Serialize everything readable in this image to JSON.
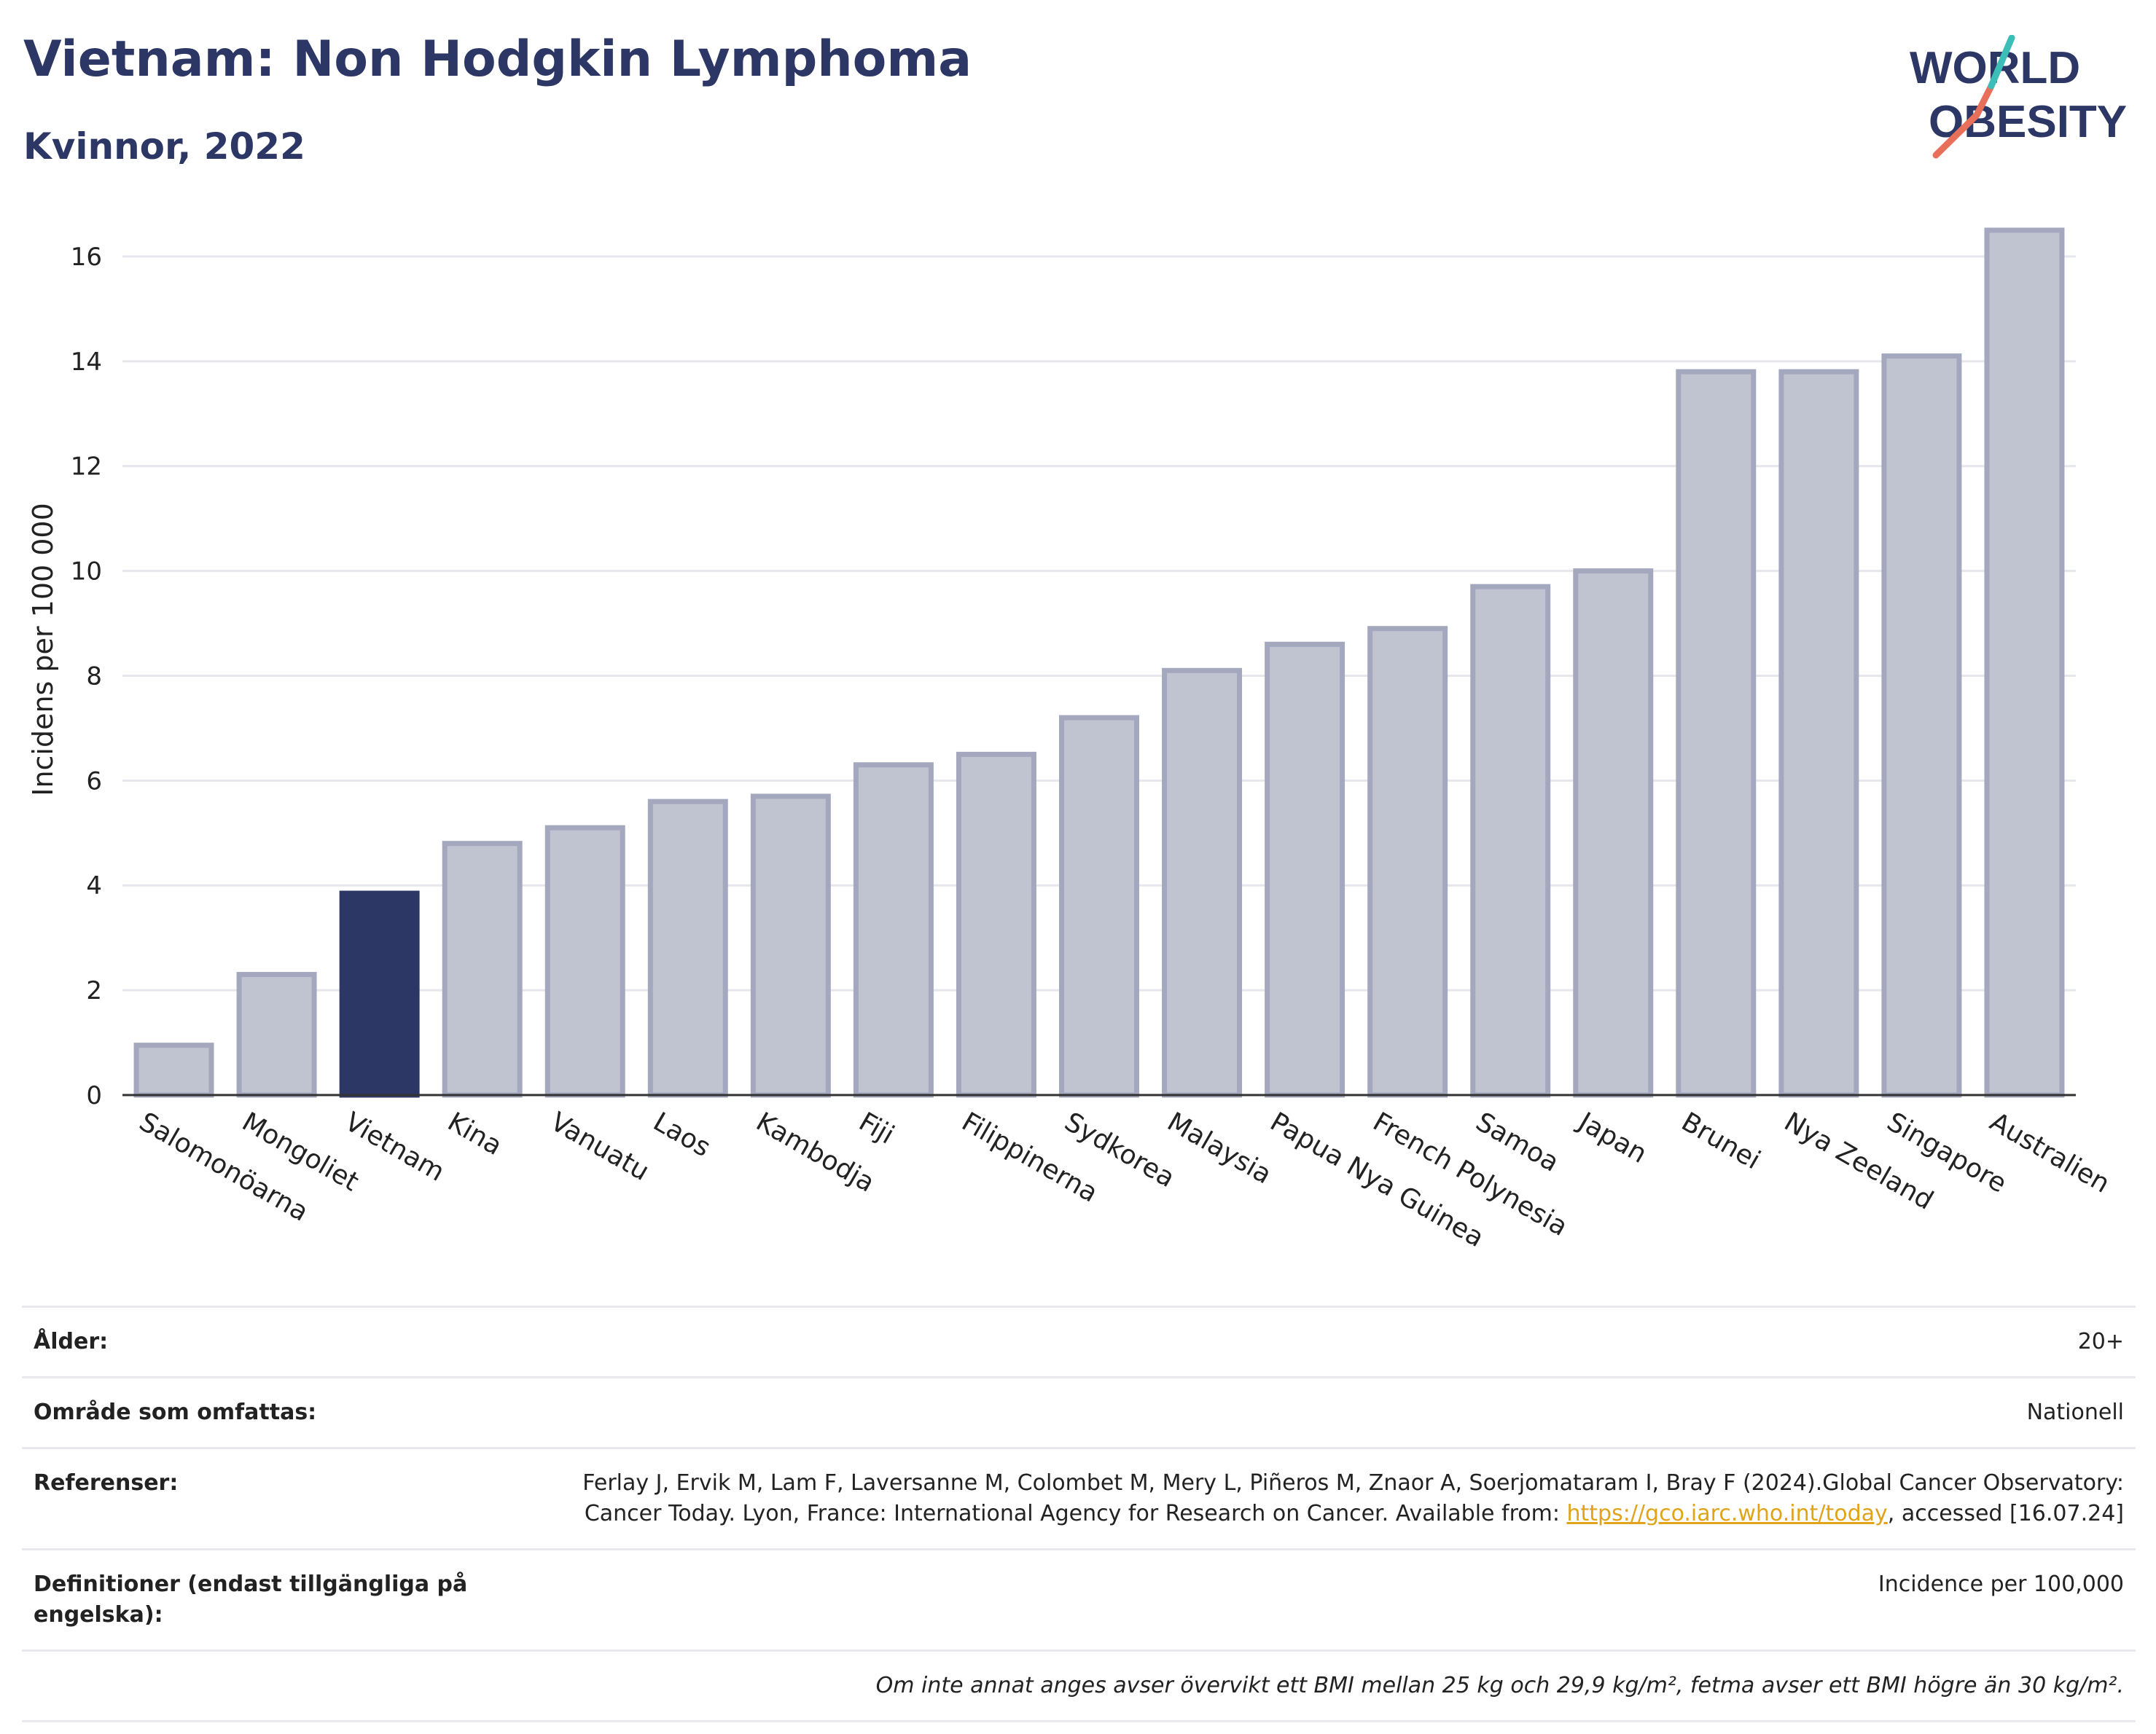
{
  "header": {
    "title": "Vietnam: Non Hodgkin Lymphoma",
    "subtitle": "Kvinnor, 2022",
    "logo_line1": "WORLD",
    "logo_line2": "OBESITY"
  },
  "chart_data": {
    "type": "bar",
    "ylabel": "Incidens per 100 000",
    "ylim": [
      0,
      17
    ],
    "yticks": [
      0,
      2,
      4,
      6,
      8,
      10,
      12,
      14,
      16
    ],
    "grid": true,
    "highlight": "Vietnam",
    "categories": [
      "Salomonöarna",
      "Mongoliet",
      "Vietnam",
      "Kina",
      "Vanuatu",
      "Laos",
      "Kambodja",
      "Fiji",
      "Filippinerna",
      "Sydkorea",
      "Malaysia",
      "Papua Nya Guinea",
      "French Polynesia",
      "Samoa",
      "Japan",
      "Brunei",
      "Nya Zeeland",
      "Singapore",
      "Australien"
    ],
    "values": [
      0.95,
      2.3,
      3.85,
      4.8,
      5.1,
      5.6,
      5.7,
      6.3,
      6.5,
      7.2,
      8.1,
      8.6,
      8.9,
      9.7,
      10.0,
      13.8,
      13.8,
      14.1,
      16.5
    ],
    "colors": {
      "bar": "#c0c3d0",
      "bar_edge": "#a3a8be",
      "highlight": "#2d3766",
      "axis": "#333333",
      "grid": "#e6e7ec"
    }
  },
  "meta": {
    "age_label": "Ålder:",
    "age_value": "20+",
    "area_label": "Område som omfattas:",
    "area_value": "Nationell",
    "refs_label": "Referenser:",
    "refs_text_1": "Ferlay J, Ervik M, Lam F, Laversanne M, Colombet M, Mery L, Piñeros M, Znaor A, Soerjomataram I, Bray F (2024).Global Cancer Observatory: Cancer Today. Lyon, France: International Agency for Research on Cancer. Available from: ",
    "refs_link": "https://gco.iarc.who.int/today",
    "refs_text_2": ", accessed [16.07.24]",
    "def_label": "Definitioner (endast tillgängliga på engelska):",
    "def_value": "Incidence per 100,000",
    "note": "Om inte annat anges avser övervikt ett BMI mellan 25 kg och 29,9 kg/m², fetma avser ett BMI högre än 30 kg/m²."
  }
}
